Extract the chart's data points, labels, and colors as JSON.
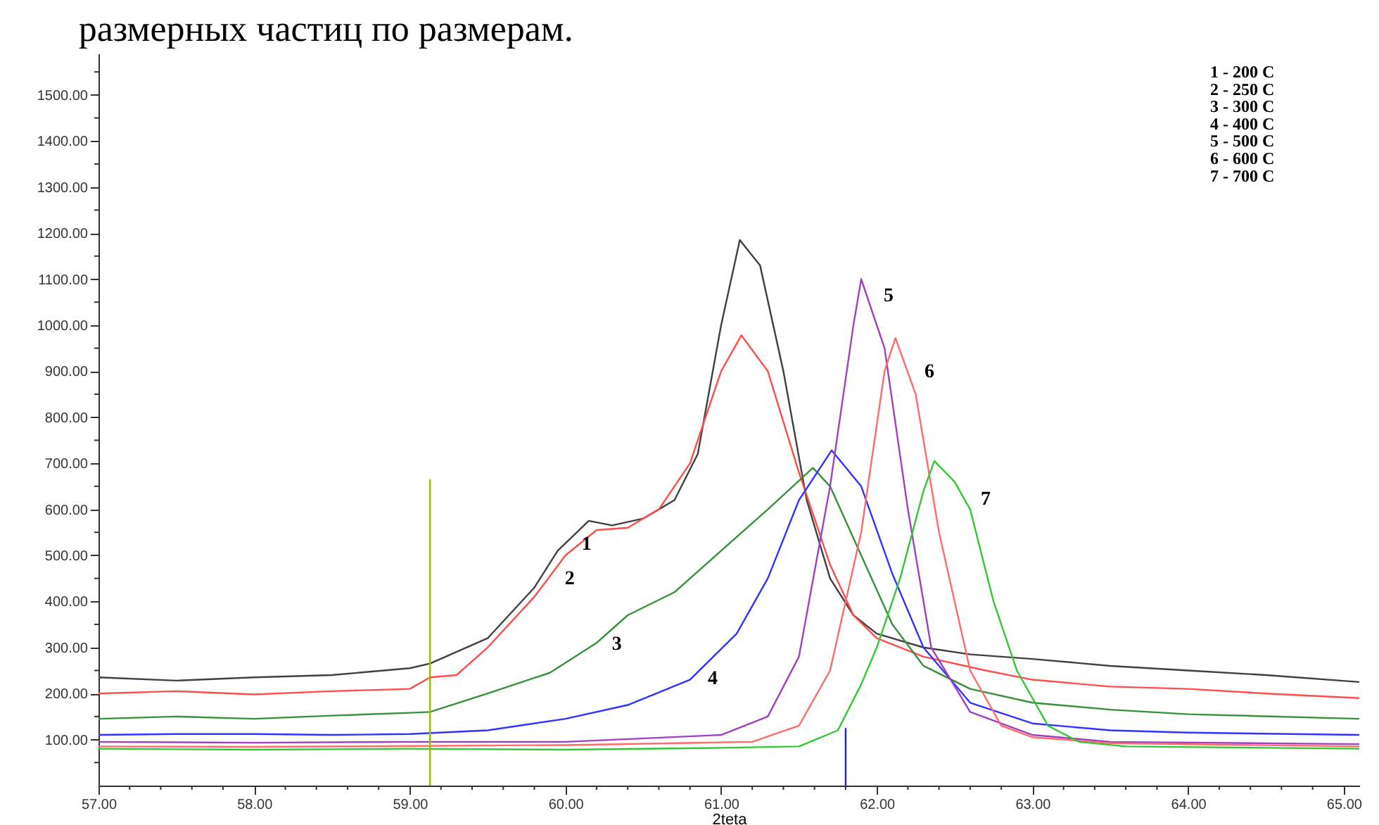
{
  "chart_data": {
    "type": "line",
    "title": "размерных частиц по размерам.",
    "xlabel": "2teta",
    "xlim": [
      57,
      65.1
    ],
    "ylim": [
      0,
      1590
    ],
    "xticks": [
      {
        "value": 57,
        "label": "57.00"
      },
      {
        "value": 57.2,
        "label": null
      },
      {
        "value": 57.4,
        "label": null
      },
      {
        "value": 57.6,
        "label": null
      },
      {
        "value": 57.8,
        "label": null
      },
      {
        "value": 58,
        "label": "58.00"
      },
      {
        "value": 58.2,
        "label": null
      },
      {
        "value": 58.4,
        "label": null
      },
      {
        "value": 58.6,
        "label": null
      },
      {
        "value": 58.8,
        "label": null
      },
      {
        "value": 59,
        "label": "59.00"
      },
      {
        "value": 59.2,
        "label": null
      },
      {
        "value": 59.4,
        "label": null
      },
      {
        "value": 59.6,
        "label": null
      },
      {
        "value": 59.8,
        "label": null
      },
      {
        "value": 60,
        "label": "60.00"
      },
      {
        "value": 60.2,
        "label": null
      },
      {
        "value": 60.4,
        "label": null
      },
      {
        "value": 60.6,
        "label": null
      },
      {
        "value": 60.8,
        "label": null
      },
      {
        "value": 61,
        "label": "61.00"
      },
      {
        "value": 61.2,
        "label": null
      },
      {
        "value": 61.4,
        "label": null
      },
      {
        "value": 61.6,
        "label": null
      },
      {
        "value": 61.8,
        "label": null
      },
      {
        "value": 62,
        "label": "62.00"
      },
      {
        "value": 62.2,
        "label": null
      },
      {
        "value": 62.4,
        "label": null
      },
      {
        "value": 62.6,
        "label": null
      },
      {
        "value": 62.8,
        "label": null
      },
      {
        "value": 63,
        "label": "63.00"
      },
      {
        "value": 63.2,
        "label": null
      },
      {
        "value": 63.4,
        "label": null
      },
      {
        "value": 63.6,
        "label": null
      },
      {
        "value": 63.8,
        "label": null
      },
      {
        "value": 64,
        "label": "64.00"
      },
      {
        "value": 64.2,
        "label": null
      },
      {
        "value": 64.4,
        "label": null
      },
      {
        "value": 64.6,
        "label": null
      },
      {
        "value": 64.8,
        "label": null
      },
      {
        "value": 65,
        "label": "65.00"
      }
    ],
    "yticks": [
      {
        "value": 50,
        "label": null
      },
      {
        "value": 100,
        "label": "100.00"
      },
      {
        "value": 150,
        "label": null
      },
      {
        "value": 200,
        "label": "200.00"
      },
      {
        "value": 250,
        "label": null
      },
      {
        "value": 300,
        "label": "300.00"
      },
      {
        "value": 350,
        "label": null
      },
      {
        "value": 400,
        "label": "400.00"
      },
      {
        "value": 450,
        "label": null
      },
      {
        "value": 500,
        "label": "500.00"
      },
      {
        "value": 550,
        "label": null
      },
      {
        "value": 600,
        "label": "600.00"
      },
      {
        "value": 650,
        "label": null
      },
      {
        "value": 700,
        "label": "700.00"
      },
      {
        "value": 750,
        "label": null
      },
      {
        "value": 800,
        "label": "800.00"
      },
      {
        "value": 850,
        "label": null
      },
      {
        "value": 900,
        "label": "900.00"
      },
      {
        "value": 950,
        "label": null
      },
      {
        "value": 1000,
        "label": "1000.00"
      },
      {
        "value": 1050,
        "label": null
      },
      {
        "value": 1100,
        "label": "1100.00"
      },
      {
        "value": 1150,
        "label": null
      },
      {
        "value": 1200,
        "label": "1200.00"
      },
      {
        "value": 1250,
        "label": null
      },
      {
        "value": 1300,
        "label": "1300.00"
      },
      {
        "value": 1350,
        "label": null
      },
      {
        "value": 1400,
        "label": "1400.00"
      },
      {
        "value": 1450,
        "label": null
      },
      {
        "value": 1500,
        "label": "1500.00"
      },
      {
        "value": 1550,
        "label": null
      }
    ],
    "grid": false,
    "legend": false,
    "line_style": "solid",
    "marker": "none",
    "series": [
      {
        "color": "#404040",
        "x": [
          57,
          57.5,
          58,
          58.5,
          59,
          59.13,
          59.5,
          59.8,
          59.95,
          60.15,
          60.3,
          60.5,
          60.7,
          60.85,
          61.0,
          61.12,
          61.25,
          61.4,
          61.55,
          61.7,
          61.85,
          62.0,
          62.3,
          62.6,
          63.0,
          63.5,
          64.0,
          64.5,
          65.1
        ],
        "values": [
          235,
          228,
          235,
          240,
          255,
          265,
          320,
          430,
          510,
          575,
          565,
          580,
          620,
          720,
          1000,
          1185,
          1130,
          900,
          620,
          450,
          370,
          330,
          300,
          285,
          275,
          260,
          250,
          240,
          225
        ]
      },
      {
        "color": "#ff4d4d",
        "x": [
          57,
          57.5,
          58,
          58.5,
          59,
          59.13,
          59.3,
          59.5,
          59.8,
          60.0,
          60.2,
          60.4,
          60.6,
          60.8,
          61.0,
          61.13,
          61.3,
          61.5,
          61.7,
          61.85,
          62.0,
          62.3,
          62.7,
          63.0,
          63.5,
          64.0,
          64.5,
          65.1
        ],
        "values": [
          200,
          205,
          198,
          205,
          210,
          235,
          240,
          300,
          410,
          500,
          555,
          560,
          600,
          700,
          900,
          978,
          900,
          680,
          480,
          370,
          320,
          280,
          250,
          230,
          215,
          210,
          200,
          190
        ]
      },
      {
        "color": "#3a8f3a",
        "x": [
          57,
          57.5,
          58,
          58.5,
          59,
          59.13,
          59.5,
          59.9,
          60.2,
          60.4,
          60.7,
          61.0,
          61.3,
          61.59,
          61.7,
          61.9,
          62.1,
          62.3,
          62.6,
          63.0,
          63.5,
          64.0,
          65.1
        ],
        "values": [
          145,
          150,
          145,
          152,
          158,
          160,
          200,
          245,
          310,
          370,
          420,
          510,
          600,
          690,
          650,
          500,
          350,
          260,
          210,
          180,
          165,
          155,
          145
        ]
      },
      {
        "color": "#3333ff",
        "x": [
          57,
          57.5,
          58,
          58.5,
          59,
          59.5,
          60.0,
          60.4,
          60.8,
          61.1,
          61.3,
          61.5,
          61.71,
          61.9,
          62.1,
          62.3,
          62.6,
          63.0,
          63.5,
          64.0,
          65.1
        ],
        "values": [
          110,
          112,
          112,
          110,
          112,
          120,
          145,
          175,
          230,
          330,
          450,
          620,
          728,
          650,
          460,
          300,
          180,
          135,
          120,
          115,
          110
        ]
      },
      {
        "color": "#a040c0",
        "x": [
          57,
          58,
          59,
          60.0,
          61.0,
          61.3,
          61.5,
          61.7,
          61.85,
          61.9,
          62.05,
          62.2,
          62.35,
          62.6,
          63.0,
          63.5,
          65.1
        ],
        "values": [
          95,
          93,
          95,
          95,
          110,
          150,
          280,
          650,
          1000,
          1100,
          950,
          600,
          300,
          160,
          110,
          95,
          90
        ]
      },
      {
        "color": "#ff6a6a",
        "x": [
          57,
          58,
          59,
          60,
          61.2,
          61.5,
          61.7,
          61.9,
          62.05,
          62.12,
          62.25,
          62.4,
          62.6,
          62.8,
          63.0,
          63.5,
          65.1
        ],
        "values": [
          85,
          84,
          86,
          88,
          95,
          130,
          250,
          550,
          900,
          972,
          850,
          550,
          250,
          130,
          105,
          92,
          85
        ]
      },
      {
        "color": "#33c833",
        "x": [
          57,
          58,
          59,
          60,
          61,
          61.5,
          61.75,
          61.9,
          62.0,
          62.15,
          62.3,
          62.37,
          62.5,
          62.6,
          62.75,
          62.9,
          63.1,
          63.3,
          63.6,
          65.1
        ],
        "values": [
          80,
          78,
          80,
          78,
          82,
          85,
          120,
          220,
          300,
          450,
          640,
          705,
          660,
          600,
          400,
          250,
          130,
          95,
          85,
          80
        ]
      },
      {
        "color": "#99bb00",
        "x": [
          59.13,
          59.13
        ],
        "values": [
          0,
          665
        ]
      },
      {
        "color": "#2222cc",
        "x": [
          61.8,
          61.8
        ],
        "values": [
          0,
          125
        ]
      }
    ],
    "annotations": [
      {
        "text": "1",
        "x": 59.996,
        "y": 525
      },
      {
        "text": "2",
        "x": 59.887,
        "y": 449
      },
      {
        "text": "3",
        "x": 60.19,
        "y": 307
      },
      {
        "text": "4",
        "x": 60.806,
        "y": 232
      },
      {
        "text": "5",
        "x": 61.936,
        "y": 1064
      },
      {
        "text": "6",
        "x": 62.198,
        "y": 899
      },
      {
        "text": "7",
        "x": 62.56,
        "y": 623
      },
      "1 - 200 C",
      "2 - 250 C",
      "3 - 300 C",
      "4 - 400 C",
      "5 - 500 C",
      "6 - 600 C",
      "7 - 700 C"
    ]
  }
}
